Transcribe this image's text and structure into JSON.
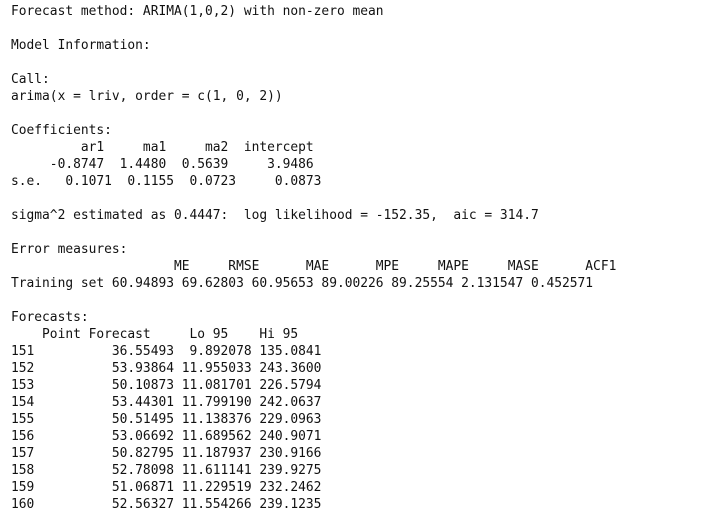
{
  "console": {
    "forecast_method": "Forecast method: ARIMA(1,0,2) with non-zero mean",
    "model_info_header": "Model Information:",
    "call_header": "Call:",
    "call_text": "arima(x = lriv, order = c(1, 0, 2))",
    "coefficients_header": "Coefficients:",
    "coefficients_columns_line": "         ar1     ma1     ma2  intercept",
    "coefficients_values_line": "     -0.8747  1.4480  0.5639     3.9486",
    "coefficients_se_line": "s.e.   0.1071  0.1155  0.0723     0.0873",
    "sigma_line": "sigma^2 estimated as 0.4447:  log likelihood = -152.35,  aic = 314.7",
    "error_measures_header": "Error measures:",
    "error_columns_line": "                     ME     RMSE      MAE      MPE     MAPE     MASE      ACF1",
    "error_values_line": "Training set 60.94893 69.62803 60.95653 89.00226 89.25554 2.131547 0.452571",
    "forecasts_header": "Forecasts:",
    "forecast_columns_line": "    Point Forecast     Lo 95    Hi 95",
    "forecast_rows": [
      "151          36.55493  9.892078 135.0841",
      "152          53.93864 11.955033 243.3600",
      "153          50.10873 11.081701 226.5794",
      "154          53.44301 11.799190 242.0637",
      "155          50.51495 11.138376 229.0963",
      "156          53.06692 11.689562 240.9071",
      "157          50.82795 11.187937 230.9166",
      "158          52.78098 11.611141 239.9275",
      "159          51.06871 11.229519 232.2462",
      "160          52.56327 11.554266 239.1235"
    ]
  }
}
